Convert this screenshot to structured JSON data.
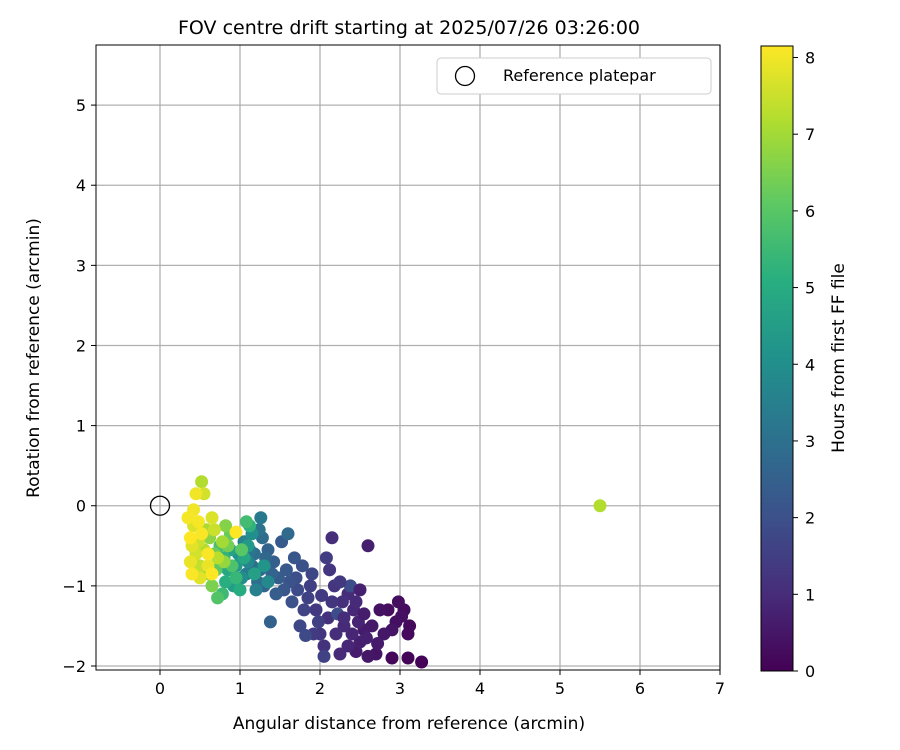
{
  "chart_data": {
    "type": "scatter",
    "title": "FOV centre drift starting at 2025/07/26 03:26:00",
    "xlabel": "Angular distance from reference (arcmin)",
    "ylabel": "Rotation from reference (arcmin)",
    "xlim": [
      -0.8,
      7.0
    ],
    "ylim": [
      -2.05,
      5.75
    ],
    "xticks": [
      "0",
      "1",
      "2",
      "3",
      "4",
      "5",
      "6",
      "7"
    ],
    "yticks": [
      "−2",
      "−1",
      "0",
      "1",
      "2",
      "3",
      "4",
      "5"
    ],
    "grid": true,
    "legend": {
      "placement": "top-right",
      "entries": [
        "Reference platepar"
      ]
    },
    "colorbar": {
      "label": "Hours from first FF file",
      "range": [
        0,
        8.15
      ],
      "ticks": [
        "0",
        "1",
        "2",
        "3",
        "4",
        "5",
        "6",
        "7",
        "8"
      ],
      "colormap": "viridis"
    },
    "reference_point": {
      "x": 0,
      "y": 0,
      "marker": "open-circle",
      "color": "#000000"
    },
    "points": [
      [
        3.27,
        -1.95,
        0.05
      ],
      [
        3.1,
        -1.9,
        0.1
      ],
      [
        2.9,
        -1.9,
        0.15
      ],
      [
        3.1,
        -1.6,
        0.2
      ],
      [
        3.12,
        -1.5,
        0.2
      ],
      [
        3.05,
        -1.3,
        0.25
      ],
      [
        2.98,
        -1.2,
        0.3
      ],
      [
        2.85,
        -1.3,
        0.3
      ],
      [
        2.95,
        -1.45,
        0.35
      ],
      [
        3.02,
        -1.38,
        0.35
      ],
      [
        2.75,
        -1.3,
        0.4
      ],
      [
        2.9,
        -1.55,
        0.45
      ],
      [
        2.7,
        -1.85,
        0.45
      ],
      [
        2.8,
        -1.6,
        0.5
      ],
      [
        2.6,
        -1.88,
        0.5
      ],
      [
        2.65,
        -1.5,
        0.55
      ],
      [
        2.55,
        -1.55,
        0.6
      ],
      [
        2.72,
        -1.72,
        0.6
      ],
      [
        2.45,
        -1.82,
        0.65
      ],
      [
        2.5,
        -1.7,
        0.7
      ],
      [
        2.6,
        -0.5,
        0.7
      ],
      [
        2.58,
        -1.65,
        0.75
      ],
      [
        2.48,
        -1.45,
        0.8
      ],
      [
        2.4,
        -1.6,
        0.85
      ],
      [
        2.35,
        -1.75,
        0.85
      ],
      [
        2.42,
        -1.3,
        0.9
      ],
      [
        2.3,
        -1.5,
        0.95
      ],
      [
        2.25,
        -1.85,
        0.95
      ],
      [
        2.35,
        -1.1,
        1.0
      ],
      [
        2.2,
        -1.6,
        1.05
      ],
      [
        2.15,
        -0.4,
        1.05
      ],
      [
        2.28,
        -1.2,
        1.1
      ],
      [
        2.1,
        -1.4,
        1.15
      ],
      [
        2.05,
        -1.75,
        1.15
      ],
      [
        2.18,
        -1.0,
        1.2
      ],
      [
        2.0,
        -1.6,
        1.25
      ],
      [
        2.12,
        -0.8,
        1.3
      ],
      [
        1.95,
        -1.3,
        1.35
      ],
      [
        2.02,
        -1.12,
        1.4
      ],
      [
        1.92,
        -1.6,
        1.4
      ],
      [
        2.08,
        -0.65,
        1.45
      ],
      [
        1.88,
        -1.0,
        1.5
      ],
      [
        1.98,
        -1.45,
        1.55
      ],
      [
        1.85,
        -1.15,
        1.6
      ],
      [
        2.05,
        -1.88,
        1.6
      ],
      [
        1.8,
        -1.3,
        1.65
      ],
      [
        1.9,
        -0.85,
        1.7
      ],
      [
        1.75,
        -1.5,
        1.75
      ],
      [
        1.82,
        -1.62,
        1.8
      ],
      [
        1.72,
        -1.05,
        1.85
      ],
      [
        2.22,
        -1.35,
        1.9
      ],
      [
        2.38,
        -1.0,
        1.9
      ],
      [
        2.45,
        -1.2,
        0.95
      ],
      [
        2.3,
        -1.4,
        1.0
      ],
      [
        2.15,
        -1.2,
        1.25
      ],
      [
        2.25,
        -0.95,
        1.35
      ],
      [
        2.5,
        -1.05,
        0.75
      ],
      [
        2.55,
        -1.35,
        0.65
      ],
      [
        1.7,
        -0.9,
        1.95
      ],
      [
        1.78,
        -0.75,
        2.0
      ],
      [
        1.65,
        -1.2,
        2.05
      ],
      [
        1.62,
        -0.95,
        2.1
      ],
      [
        1.68,
        -0.65,
        2.15
      ],
      [
        1.55,
        -1.05,
        2.2
      ],
      [
        1.58,
        -0.8,
        2.25
      ],
      [
        1.52,
        -0.45,
        2.3
      ],
      [
        1.48,
        -0.9,
        2.35
      ],
      [
        1.45,
        -1.1,
        2.4
      ],
      [
        1.42,
        -0.7,
        2.45
      ],
      [
        1.38,
        -1.45,
        2.5
      ],
      [
        1.35,
        -0.55,
        2.55
      ],
      [
        1.4,
        -0.85,
        2.6
      ],
      [
        1.3,
        -1.0,
        2.65
      ],
      [
        1.32,
        -0.65,
        2.7
      ],
      [
        1.25,
        -0.8,
        2.75
      ],
      [
        1.6,
        -0.35,
        2.8
      ],
      [
        1.28,
        -0.4,
        2.85
      ],
      [
        1.22,
        -0.95,
        2.9
      ],
      [
        1.18,
        -0.6,
        2.95
      ],
      [
        1.15,
        -0.75,
        3.0
      ],
      [
        1.24,
        -0.3,
        3.1
      ],
      [
        1.12,
        -0.55,
        3.2
      ],
      [
        1.26,
        -0.15,
        3.3
      ],
      [
        1.08,
        -0.85,
        3.4
      ],
      [
        1.2,
        -1.05,
        3.5
      ],
      [
        1.05,
        -0.45,
        3.6
      ],
      [
        1.1,
        -0.7,
        3.7
      ],
      [
        1.35,
        -0.95,
        3.8
      ],
      [
        1.02,
        -0.9,
        3.9
      ],
      [
        1.15,
        -0.35,
        4.0
      ],
      [
        0.98,
        -0.6,
        4.1
      ],
      [
        1.3,
        -0.75,
        4.2
      ],
      [
        0.95,
        -0.75,
        4.3
      ],
      [
        1.1,
        -0.5,
        4.4
      ],
      [
        0.92,
        -1.0,
        4.5
      ],
      [
        1.18,
        -0.85,
        4.6
      ],
      [
        0.88,
        -0.55,
        4.7
      ],
      [
        1.05,
        -0.65,
        4.8
      ],
      [
        0.85,
        -0.8,
        4.9
      ],
      [
        1.0,
        -1.05,
        5.0
      ],
      [
        0.82,
        -0.95,
        5.1
      ],
      [
        1.12,
        -0.25,
        5.2
      ],
      [
        0.8,
        -0.65,
        5.3
      ],
      [
        0.95,
        -0.9,
        5.4
      ],
      [
        0.78,
        -1.1,
        5.5
      ],
      [
        1.08,
        -0.2,
        5.6
      ],
      [
        0.75,
        -0.5,
        5.7
      ],
      [
        0.9,
        -0.75,
        5.8
      ],
      [
        0.72,
        -1.15,
        5.9
      ],
      [
        1.02,
        -0.55,
        6.0
      ],
      [
        0.7,
        -0.8,
        6.1
      ],
      [
        0.88,
        -0.35,
        6.2
      ],
      [
        0.68,
        -0.6,
        6.3
      ],
      [
        0.85,
        -0.5,
        6.4
      ],
      [
        0.65,
        -1.0,
        6.5
      ],
      [
        0.82,
        -0.25,
        6.6
      ],
      [
        0.62,
        -0.4,
        6.7
      ],
      [
        0.8,
        -0.7,
        6.8
      ],
      [
        0.6,
        -0.85,
        6.9
      ],
      [
        0.78,
        -0.45,
        7.0
      ],
      [
        0.58,
        -0.3,
        7.1
      ],
      [
        0.55,
        -0.55,
        7.2
      ],
      [
        0.52,
        0.3,
        7.2
      ],
      [
        0.72,
        -0.65,
        7.3
      ],
      [
        0.5,
        -0.75,
        7.4
      ],
      [
        0.68,
        -0.3,
        7.5
      ],
      [
        0.48,
        -0.45,
        7.5
      ],
      [
        0.55,
        0.15,
        7.6
      ],
      [
        0.45,
        -0.6,
        7.6
      ],
      [
        0.65,
        -0.15,
        7.7
      ],
      [
        0.42,
        -0.25,
        7.7
      ],
      [
        0.5,
        -0.9,
        7.8
      ],
      [
        0.4,
        -0.5,
        7.8
      ],
      [
        0.6,
        -0.75,
        7.9
      ],
      [
        0.38,
        -0.7,
        7.9
      ],
      [
        0.45,
        0.15,
        8.0
      ],
      [
        0.42,
        -0.05,
        8.0
      ],
      [
        0.35,
        -0.15,
        8.05
      ],
      [
        0.48,
        -0.2,
        8.05
      ],
      [
        0.6,
        -0.6,
        8.1
      ],
      [
        0.52,
        -0.35,
        8.1
      ],
      [
        0.4,
        -0.85,
        8.1
      ],
      [
        0.65,
        -0.85,
        8.15
      ],
      [
        0.95,
        -0.33,
        8.15
      ],
      [
        0.38,
        -0.4,
        8.15
      ],
      [
        5.5,
        0.0,
        7.2
      ]
    ]
  }
}
